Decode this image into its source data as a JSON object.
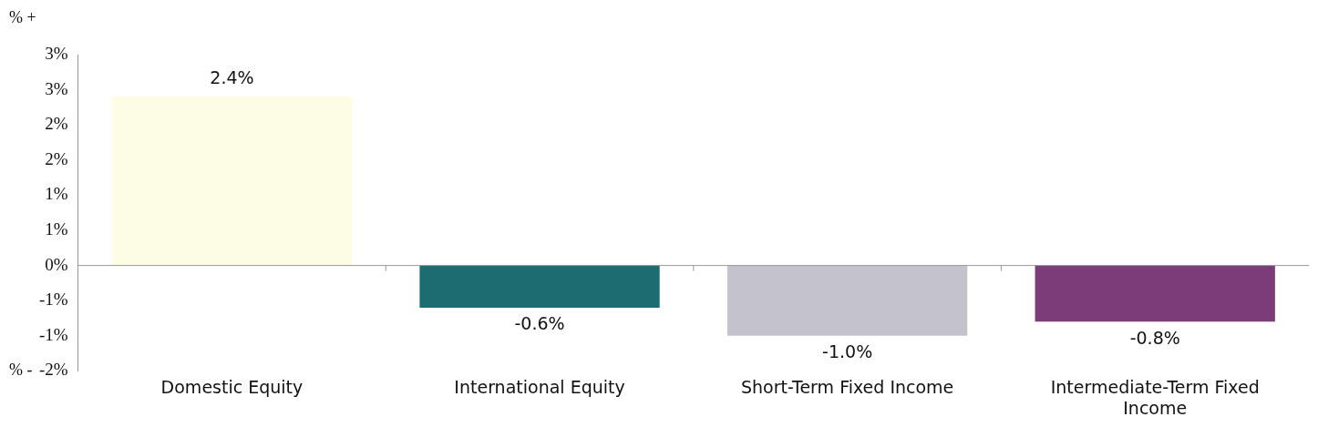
{
  "chart_data": {
    "type": "bar",
    "categories": [
      "Domestic Equity",
      "International Equity",
      "Short-Term Fixed Income",
      "Intermediate-Term Fixed Income"
    ],
    "values": [
      2.4,
      -0.6,
      -1.0,
      -0.8
    ],
    "colors": [
      "#fdfde6",
      "#1c6c72",
      "#c4c3cb",
      "#7c3c7a"
    ],
    "value_labels": [
      "2.4%",
      "-0.6%",
      "-1.0%",
      "-0.8%"
    ],
    "ylim": [
      -1.5,
      3
    ],
    "yticks": [
      {
        "value": 3,
        "label": "3%"
      },
      {
        "value": 2.5,
        "label": "3%"
      },
      {
        "value": 2,
        "label": "2%"
      },
      {
        "value": 1.5,
        "label": "2%"
      },
      {
        "value": 1,
        "label": "1%"
      },
      {
        "value": 0.5,
        "label": "1%"
      },
      {
        "value": 0,
        "label": "0%"
      },
      {
        "value": -0.5,
        "label": "-1%"
      },
      {
        "value": -1,
        "label": "-1%"
      },
      {
        "value": -1.5,
        "label": "-2%"
      }
    ],
    "annotations": [
      "% +",
      "% -"
    ],
    "ref_lines": [
      {
        "axis": "y",
        "value": 0,
        "color": "#999999"
      }
    ],
    "grid": false,
    "legend": false
  }
}
